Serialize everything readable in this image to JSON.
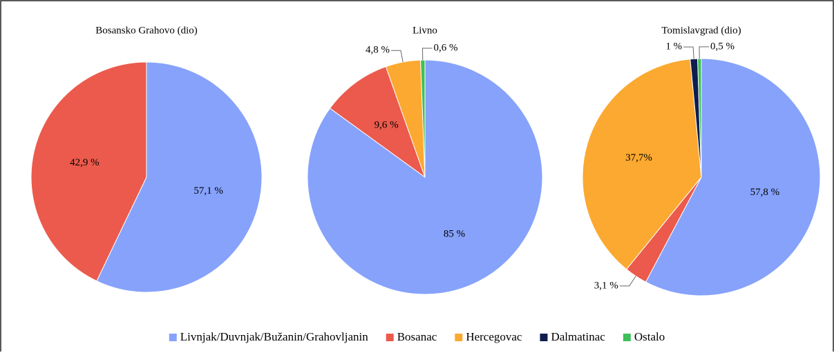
{
  "chart_data": [
    {
      "type": "pie",
      "title": "Bosansko Grahovo (dio)",
      "categories": [
        "Livnjak/Duvnjak/Bužanin/Grahovljanin",
        "Bosanac"
      ],
      "values": [
        57.1,
        42.9
      ],
      "value_labels": [
        "57,1 %",
        "42,9 %"
      ],
      "colors": [
        "#86a2fb",
        "#eb5a4c"
      ]
    },
    {
      "type": "pie",
      "title": "Livno",
      "categories": [
        "Livnjak/Duvnjak/Bužanin/Grahovljanin",
        "Bosanac",
        "Hercegovac",
        "Ostalo"
      ],
      "values": [
        85,
        9.6,
        4.8,
        0.6
      ],
      "value_labels": [
        "85 %",
        "9,6 %",
        "4,8 %",
        "0,6 %"
      ],
      "colors": [
        "#86a2fb",
        "#eb5a4c",
        "#fba930",
        "#3cc05a"
      ]
    },
    {
      "type": "pie",
      "title": "Tomislavgrad (dio)",
      "categories": [
        "Livnjak/Duvnjak/Bužanin/Grahovljanin",
        "Bosanac",
        "Hercegovac",
        "Dalmatinac",
        "Ostalo"
      ],
      "values": [
        57.8,
        3.1,
        37.7,
        1,
        0.5
      ],
      "value_labels": [
        "57,8 %",
        "3,1 %",
        "37,7%",
        "1 %",
        "0,5 %"
      ],
      "colors": [
        "#86a2fb",
        "#eb5a4c",
        "#fba930",
        "#0f1e4f",
        "#3cc05a"
      ]
    }
  ]
}
